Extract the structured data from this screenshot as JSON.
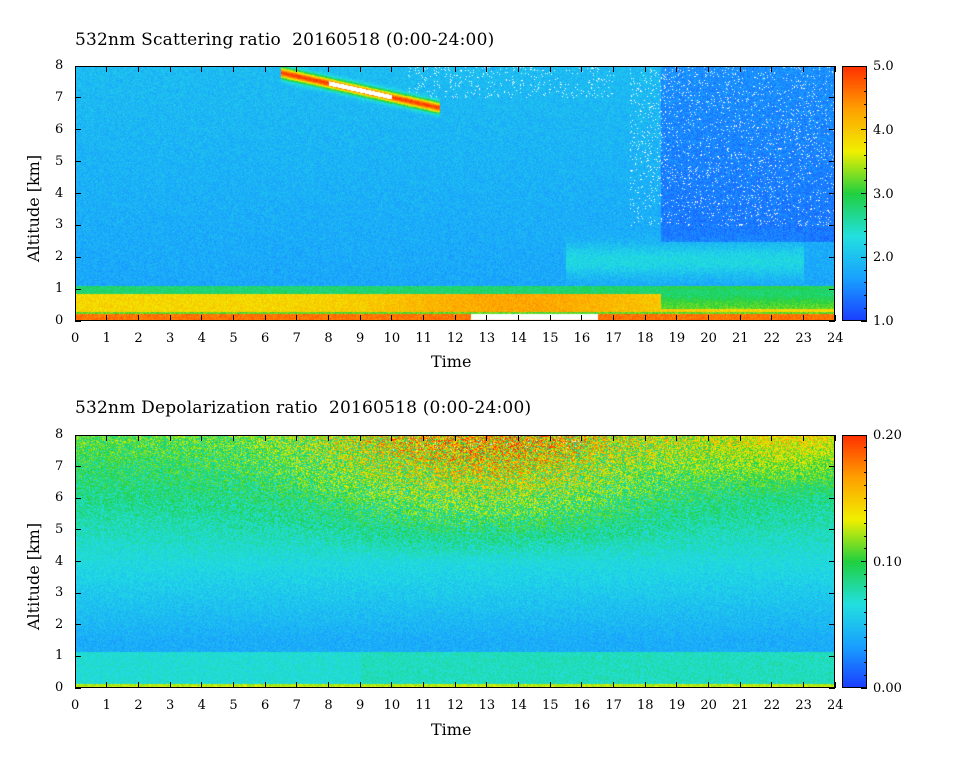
{
  "chart_data": [
    {
      "type": "heatmap",
      "title": "532nm Scattering ratio  20160518 (0:00-24:00)",
      "xlabel": "Time",
      "ylabel": "Altitude [km]",
      "x_ticks": [
        "0",
        "1",
        "2",
        "3",
        "4",
        "5",
        "6",
        "7",
        "8",
        "9",
        "10",
        "11",
        "12",
        "13",
        "14",
        "15",
        "16",
        "17",
        "18",
        "19",
        "20",
        "21",
        "22",
        "23",
        "24"
      ],
      "y_ticks": [
        "0",
        "1",
        "2",
        "3",
        "4",
        "5",
        "6",
        "7",
        "8"
      ],
      "xlim": [
        0,
        24
      ],
      "ylim": [
        0,
        8
      ],
      "colorbar": {
        "min": 1.0,
        "max": 5.0,
        "ticks": [
          "1.0",
          "2.0",
          "3.0",
          "4.0",
          "5.0"
        ]
      },
      "colormap": [
        "#1a3cff",
        "#19a0ff",
        "#22e0e0",
        "#20d040",
        "#f0f000",
        "#ffa000",
        "#ff3000"
      ],
      "features": [
        {
          "name": "boundary layer",
          "t_start": 0,
          "t_end": 24,
          "alt_top": 1.1,
          "value": 4.0
        },
        {
          "name": "cirrus",
          "t_start": 6.5,
          "t_end": 11.5,
          "alt": 7.5,
          "value": 5.0
        },
        {
          "name": "cloud layer",
          "t_start": 15.5,
          "t_end": 23,
          "alt": 1.8,
          "value": 2.2
        }
      ]
    },
    {
      "type": "heatmap",
      "title": "532nm Depolarization ratio  20160518 (0:00-24:00)",
      "xlabel": "Time",
      "ylabel": "Altitude [km]",
      "x_ticks": [
        "0",
        "1",
        "2",
        "3",
        "4",
        "5",
        "6",
        "7",
        "8",
        "9",
        "10",
        "11",
        "12",
        "13",
        "14",
        "15",
        "16",
        "17",
        "18",
        "19",
        "20",
        "21",
        "22",
        "23",
        "24"
      ],
      "y_ticks": [
        "0",
        "1",
        "2",
        "3",
        "4",
        "5",
        "6",
        "7",
        "8"
      ],
      "xlim": [
        0,
        24
      ],
      "ylim": [
        0,
        8
      ],
      "colorbar": {
        "min": 0.0,
        "max": 0.2,
        "ticks": [
          "0.00",
          "0.10",
          "0.20"
        ]
      },
      "colormap": [
        "#1a3cff",
        "#19a0ff",
        "#22e0e0",
        "#20d040",
        "#f0f000",
        "#ffa000",
        "#ff3000"
      ]
    }
  ]
}
